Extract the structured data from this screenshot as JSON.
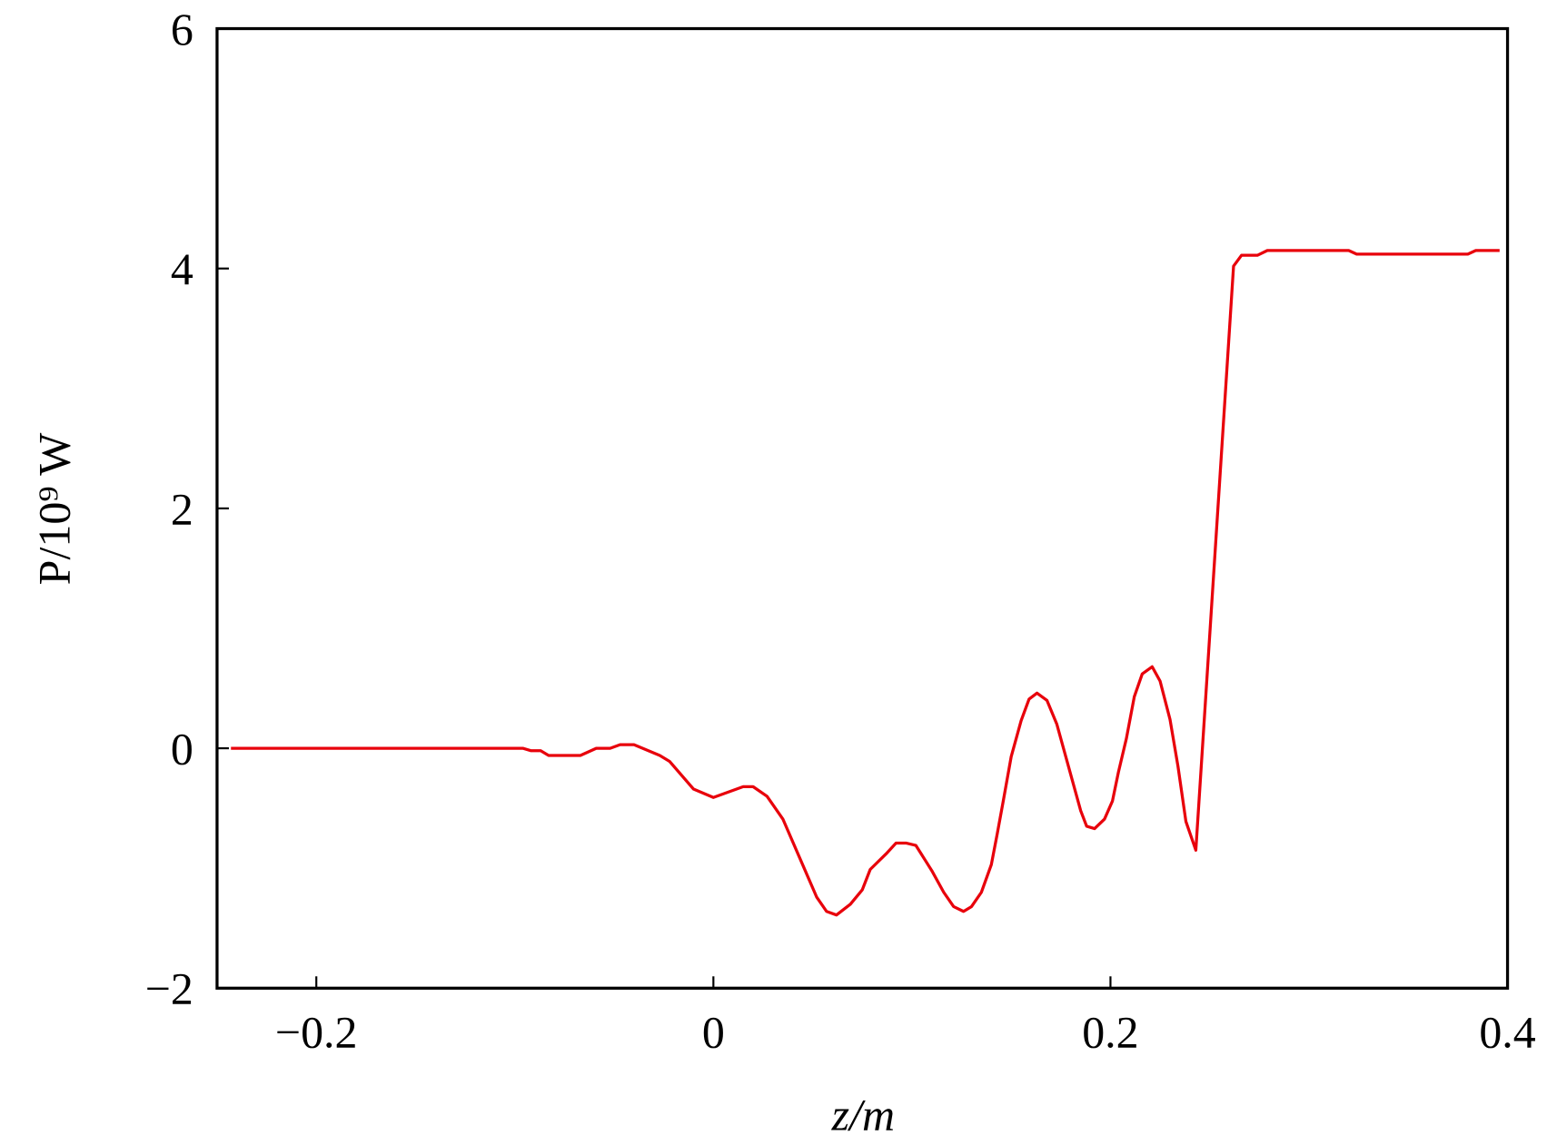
{
  "chart_data": {
    "type": "line",
    "ylabel": "P/10⁹ W",
    "xlabel": "z/m",
    "color": "#e8000b",
    "xlim": [
      -0.25,
      0.4
    ],
    "xticks": [
      {
        "value": -0.2,
        "label": "−0.2"
      },
      0,
      0.2,
      0.4
    ],
    "ylim": [
      -2,
      6
    ],
    "yticks": [
      {
        "value": -2,
        "label": "−2"
      },
      0,
      2,
      4,
      6
    ],
    "x": [
      -0.243,
      -0.096,
      -0.092,
      -0.087,
      -0.083,
      -0.067,
      -0.059,
      -0.052,
      -0.047,
      -0.04,
      -0.027,
      -0.022,
      -0.01,
      0,
      0.015,
      0.02,
      0.027,
      0.035,
      0.052,
      0.057,
      0.062,
      0.069,
      0.075,
      0.079,
      0.087,
      0.092,
      0.097,
      0.102,
      0.11,
      0.116,
      0.121,
      0.126,
      0.13,
      0.135,
      0.14,
      0.143,
      0.146,
      0.15,
      0.155,
      0.159,
      0.163,
      0.168,
      0.173,
      0.185,
      0.188,
      0.192,
      0.197,
      0.201,
      0.204,
      0.208,
      0.212,
      0.216,
      0.221,
      0.225,
      0.23,
      0.234,
      0.238,
      0.243,
      0.262,
      0.266,
      0.274,
      0.279,
      0.32,
      0.324,
      0.38,
      0.384,
      0.396
    ],
    "values": [
      0,
      0,
      -0.02,
      -0.02,
      -0.06,
      -0.06,
      0,
      0,
      0.03,
      0.03,
      -0.06,
      -0.11,
      -0.34,
      -0.41,
      -0.32,
      -0.32,
      -0.4,
      -0.59,
      -1.24,
      -1.36,
      -1.39,
      -1.3,
      -1.18,
      -1.01,
      -0.88,
      -0.79,
      -0.79,
      -0.81,
      -1.02,
      -1.2,
      -1.32,
      -1.36,
      -1.32,
      -1.2,
      -0.97,
      -0.71,
      -0.44,
      -0.07,
      0.23,
      0.41,
      0.46,
      0.4,
      0.2,
      -0.52,
      -0.65,
      -0.67,
      -0.59,
      -0.44,
      -0.2,
      0.08,
      0.43,
      0.62,
      0.68,
      0.56,
      0.24,
      -0.15,
      -0.61,
      -0.85,
      4.02,
      4.11,
      4.11,
      4.15,
      4.15,
      4.12,
      4.12,
      4.15,
      4.15
    ]
  }
}
